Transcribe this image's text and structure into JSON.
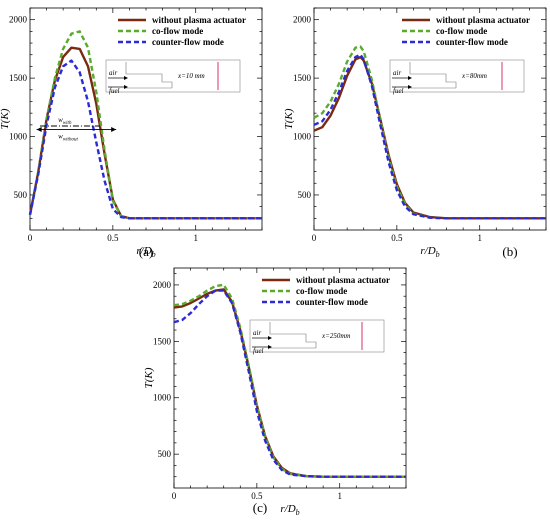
{
  "figure": {
    "legend": [
      "without plasma actuator",
      "co-flow mode",
      "counter-flow mode"
    ],
    "xlabel_main": "r/D",
    "xlabel_sub": "b",
    "ylabel": "T(K)"
  },
  "colors": {
    "without": "#7a2a10",
    "co": "#5aab2c",
    "counter": "#2b2bd6"
  },
  "chart_data": [
    {
      "type": "line",
      "panel": "(a)",
      "inset_label": "x=10 mm",
      "inset_air": "air",
      "inset_fuel": "fuel",
      "annotation_with": "w",
      "annotation_with_sub": "with",
      "annotation_without": "w",
      "annotation_without_sub": "without",
      "xlabel": "r/Db",
      "ylabel": "T(K)",
      "xlim": [
        0,
        1.4
      ],
      "ylim": [
        200,
        2100
      ],
      "xticks": [
        0,
        0.5,
        1
      ],
      "yticks": [
        500,
        1000,
        1500,
        2000
      ],
      "series": [
        {
          "name": "without plasma actuator",
          "style": "solid",
          "x": [
            0,
            0.05,
            0.1,
            0.15,
            0.2,
            0.25,
            0.3,
            0.35,
            0.4,
            0.45,
            0.5,
            0.55,
            0.6,
            0.7,
            0.8,
            1.0,
            1.2,
            1.4
          ],
          "y": [
            330,
            700,
            1150,
            1480,
            1680,
            1760,
            1750,
            1600,
            1280,
            850,
            460,
            320,
            300,
            300,
            300,
            300,
            300,
            300
          ]
        },
        {
          "name": "co-flow mode",
          "style": "dashed",
          "x": [
            0,
            0.05,
            0.1,
            0.15,
            0.2,
            0.25,
            0.3,
            0.35,
            0.4,
            0.45,
            0.5,
            0.55,
            0.6,
            0.7,
            0.8,
            1.0,
            1.2,
            1.4
          ],
          "y": [
            330,
            700,
            1150,
            1500,
            1750,
            1880,
            1900,
            1760,
            1380,
            880,
            450,
            320,
            300,
            300,
            300,
            300,
            300,
            300
          ]
        },
        {
          "name": "counter-flow mode",
          "style": "dashed",
          "x": [
            0,
            0.05,
            0.1,
            0.15,
            0.2,
            0.25,
            0.3,
            0.35,
            0.4,
            0.45,
            0.5,
            0.55,
            0.6,
            0.7,
            0.8,
            1.0,
            1.2,
            1.4
          ],
          "y": [
            330,
            680,
            1100,
            1420,
            1600,
            1650,
            1550,
            1300,
            950,
            620,
            380,
            310,
            300,
            300,
            300,
            300,
            300,
            300
          ]
        }
      ]
    },
    {
      "type": "line",
      "panel": "(b)",
      "inset_label": "x=80mm",
      "inset_air": "air",
      "inset_fuel": "fuel",
      "xlabel": "r/Db",
      "ylabel": "T(K)",
      "xlim": [
        0,
        1.4
      ],
      "ylim": [
        200,
        2100
      ],
      "xticks": [
        0,
        0.5,
        1
      ],
      "yticks": [
        500,
        1000,
        1500,
        2000
      ],
      "series": [
        {
          "name": "without plasma actuator",
          "style": "solid",
          "x": [
            0,
            0.05,
            0.1,
            0.15,
            0.2,
            0.25,
            0.28,
            0.3,
            0.35,
            0.4,
            0.45,
            0.5,
            0.55,
            0.6,
            0.7,
            0.8,
            1.0,
            1.2,
            1.4
          ],
          "y": [
            1050,
            1080,
            1180,
            1330,
            1520,
            1660,
            1680,
            1650,
            1450,
            1150,
            840,
            590,
            430,
            350,
            310,
            300,
            300,
            300,
            300
          ]
        },
        {
          "name": "co-flow mode",
          "style": "dashed",
          "x": [
            0,
            0.05,
            0.1,
            0.15,
            0.2,
            0.25,
            0.28,
            0.3,
            0.35,
            0.4,
            0.45,
            0.5,
            0.55,
            0.6,
            0.7,
            0.8,
            1.0,
            1.2,
            1.4
          ],
          "y": [
            1160,
            1200,
            1300,
            1450,
            1640,
            1760,
            1770,
            1730,
            1480,
            1140,
            820,
            570,
            420,
            340,
            305,
            300,
            300,
            300,
            300
          ]
        },
        {
          "name": "counter-flow mode",
          "style": "dashed",
          "x": [
            0,
            0.05,
            0.1,
            0.15,
            0.2,
            0.25,
            0.28,
            0.3,
            0.35,
            0.4,
            0.45,
            0.5,
            0.55,
            0.6,
            0.7,
            0.8,
            1.0,
            1.2,
            1.4
          ],
          "y": [
            1100,
            1130,
            1230,
            1380,
            1560,
            1680,
            1700,
            1660,
            1430,
            1100,
            780,
            540,
            400,
            335,
            305,
            300,
            300,
            300,
            300
          ]
        }
      ]
    },
    {
      "type": "line",
      "panel": "(c)",
      "inset_label": "x=250mm",
      "inset_air": "air",
      "inset_fuel": "fuel",
      "xlabel": "r/Db",
      "ylabel": "T(K)",
      "xlim": [
        0,
        1.4
      ],
      "ylim": [
        200,
        2150
      ],
      "xticks": [
        0,
        0.5,
        1
      ],
      "yticks": [
        500,
        1000,
        1500,
        2000
      ],
      "series": [
        {
          "name": "without plasma actuator",
          "style": "solid",
          "x": [
            0,
            0.05,
            0.1,
            0.15,
            0.2,
            0.25,
            0.3,
            0.35,
            0.4,
            0.45,
            0.5,
            0.55,
            0.6,
            0.65,
            0.7,
            0.8,
            0.9,
            1.0,
            1.2,
            1.4
          ],
          "y": [
            1800,
            1810,
            1840,
            1880,
            1920,
            1950,
            1960,
            1850,
            1600,
            1280,
            930,
            660,
            480,
            380,
            330,
            305,
            300,
            300,
            300,
            300
          ]
        },
        {
          "name": "co-flow mode",
          "style": "dashed",
          "x": [
            0,
            0.05,
            0.1,
            0.15,
            0.2,
            0.25,
            0.3,
            0.35,
            0.4,
            0.45,
            0.5,
            0.55,
            0.6,
            0.65,
            0.7,
            0.8,
            0.9,
            1.0,
            1.2,
            1.4
          ],
          "y": [
            1820,
            1830,
            1860,
            1900,
            1950,
            1990,
            2000,
            1880,
            1620,
            1290,
            930,
            650,
            470,
            370,
            325,
            305,
            300,
            300,
            300,
            300
          ]
        },
        {
          "name": "counter-flow mode",
          "style": "dashed",
          "x": [
            0,
            0.05,
            0.1,
            0.15,
            0.2,
            0.25,
            0.3,
            0.35,
            0.4,
            0.45,
            0.5,
            0.55,
            0.6,
            0.65,
            0.7,
            0.8,
            0.9,
            1.0,
            1.2,
            1.4
          ],
          "y": [
            1670,
            1690,
            1750,
            1830,
            1900,
            1950,
            1950,
            1840,
            1580,
            1240,
            880,
            620,
            450,
            360,
            320,
            305,
            300,
            300,
            300,
            300
          ]
        }
      ]
    }
  ]
}
